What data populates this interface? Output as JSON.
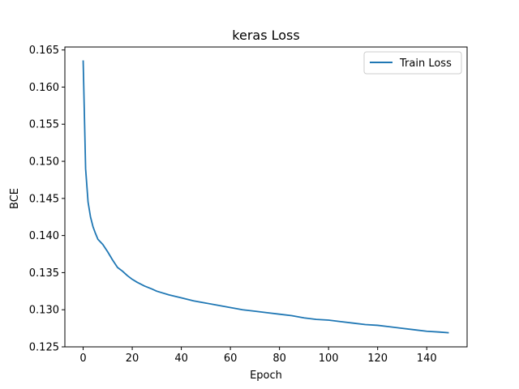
{
  "chart_data": {
    "type": "line",
    "title": "keras Loss",
    "xlabel": "Epoch",
    "ylabel": "BCE",
    "xlim": [
      -7.45,
      156.45
    ],
    "ylim": [
      0.125,
      0.1654
    ],
    "xticks": [
      0,
      20,
      40,
      60,
      80,
      100,
      120,
      140
    ],
    "yticks": [
      0.125,
      0.13,
      0.135,
      0.14,
      0.145,
      0.15,
      0.155,
      0.16,
      0.165
    ],
    "ytick_labels": [
      "0.125",
      "0.130",
      "0.135",
      "0.140",
      "0.145",
      "0.150",
      "0.155",
      "0.160",
      "0.165"
    ],
    "grid": false,
    "legend": "top-right",
    "series": [
      {
        "name": "Train Loss",
        "color": "#1f77b4",
        "points": [
          [
            0,
            0.1636
          ],
          [
            1,
            0.149
          ],
          [
            2,
            0.1445
          ],
          [
            3,
            0.1425
          ],
          [
            4,
            0.1412
          ],
          [
            5,
            0.1403
          ],
          [
            6,
            0.1395
          ],
          [
            8,
            0.1388
          ],
          [
            10,
            0.1378
          ],
          [
            12,
            0.1367
          ],
          [
            14,
            0.1357
          ],
          [
            16,
            0.1352
          ],
          [
            18,
            0.1346
          ],
          [
            20,
            0.1341
          ],
          [
            22,
            0.1337
          ],
          [
            25,
            0.1332
          ],
          [
            28,
            0.1328
          ],
          [
            30,
            0.1325
          ],
          [
            35,
            0.132
          ],
          [
            40,
            0.1316
          ],
          [
            45,
            0.1312
          ],
          [
            50,
            0.1309
          ],
          [
            55,
            0.1306
          ],
          [
            60,
            0.1303
          ],
          [
            65,
            0.13
          ],
          [
            70,
            0.1298
          ],
          [
            75,
            0.1296
          ],
          [
            80,
            0.1294
          ],
          [
            85,
            0.1292
          ],
          [
            90,
            0.1289
          ],
          [
            95,
            0.1287
          ],
          [
            100,
            0.1286
          ],
          [
            105,
            0.1284
          ],
          [
            110,
            0.1282
          ],
          [
            115,
            0.128
          ],
          [
            120,
            0.1279
          ],
          [
            125,
            0.1277
          ],
          [
            130,
            0.1275
          ],
          [
            135,
            0.1273
          ],
          [
            140,
            0.1271
          ],
          [
            145,
            0.127
          ],
          [
            149,
            0.1269
          ]
        ]
      }
    ]
  }
}
